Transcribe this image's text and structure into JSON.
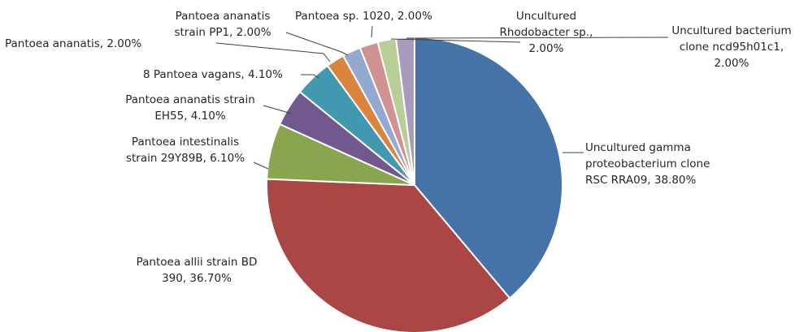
{
  "chart_data": {
    "type": "pie",
    "title": "",
    "slices": [
      {
        "name": "Uncultured gamma proteobacterium clone RSC RRA09",
        "value": 38.8,
        "color": "#4572a7",
        "label_lines": [
          "Uncultured gamma",
          "proteobacterium clone",
          "RSC RRA09, 38.80%"
        ]
      },
      {
        "name": "Pantoea allii strain BD 390",
        "value": 36.7,
        "color": "#aa4643",
        "label_lines": [
          "Pantoea allii strain BD",
          "390, 36.70%"
        ]
      },
      {
        "name": "Pantoea intestinalis strain 29Y89B",
        "value": 6.1,
        "color": "#89a54e",
        "label_lines": [
          "Pantoea intestinalis",
          "strain 29Y89B, 6.10%"
        ]
      },
      {
        "name": "Pantoea ananatis strain EH55",
        "value": 4.1,
        "color": "#71588f",
        "label_lines": [
          "Pantoea ananatis strain",
          "EH55, 4.10%"
        ]
      },
      {
        "name": "8 Pantoea vagans",
        "value": 4.1,
        "color": "#4198af",
        "label_lines": [
          "8 Pantoea vagans, 4.10%"
        ]
      },
      {
        "name": "Pantoea ananatis",
        "value": 2.0,
        "color": "#db843d",
        "label_lines": [
          "Pantoea ananatis,  2.00%"
        ]
      },
      {
        "name": "Pantoea ananatis strain PP1",
        "value": 2.0,
        "color": "#93a9cf",
        "label_lines": [
          "Pantoea ananatis",
          "strain PP1, 2.00%"
        ]
      },
      {
        "name": "Pantoea sp. 1020",
        "value": 2.0,
        "color": "#d19392",
        "label_lines": [
          "Pantoea sp. 1020, 2.00%"
        ]
      },
      {
        "name": "Uncultured Rhodobacter sp.",
        "value": 2.0,
        "color": "#b9cd96",
        "label_lines": [
          "Uncultured",
          "Rhodobacter sp.,",
          "2.00%"
        ]
      },
      {
        "name": "Uncultured bacterium clone ncd95h01c1",
        "value": 2.0,
        "color": "#a99bbd",
        "label_lines": [
          "Uncultured bacterium",
          "clone ncd95h01c1,",
          "2.00%"
        ]
      }
    ],
    "start": "12 o'clock",
    "direction": "clockwise",
    "legend": "none"
  }
}
